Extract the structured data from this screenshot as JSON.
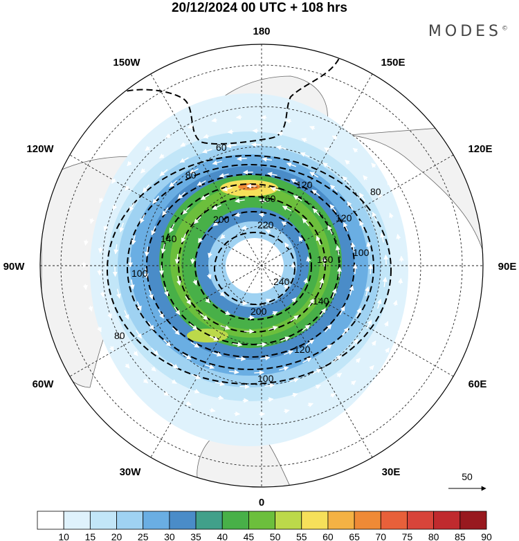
{
  "title": "20/12/2024  00 UTC  + 108 hrs",
  "logo": {
    "text": "MODES",
    "mark": "©"
  },
  "longitude_labels": [
    {
      "text": "180",
      "lon": 180
    },
    {
      "text": "150E",
      "lon": 150
    },
    {
      "text": "120E",
      "lon": 120
    },
    {
      "text": "90E",
      "lon": 90
    },
    {
      "text": "60E",
      "lon": 60
    },
    {
      "text": "30E",
      "lon": 30
    },
    {
      "text": "0",
      "lon": 0
    },
    {
      "text": "30W",
      "lon": -30
    },
    {
      "text": "60W",
      "lon": -60
    },
    {
      "text": "90W",
      "lon": -90
    },
    {
      "text": "120W",
      "lon": -120
    },
    {
      "text": "150W",
      "lon": -150
    }
  ],
  "contour_labels": [
    "60",
    "80",
    "120",
    "160",
    "200",
    "220",
    "240",
    "200",
    "140",
    "160",
    "120",
    "100",
    "80",
    "100",
    "80",
    "100",
    "140",
    "120"
  ],
  "vector_reference": {
    "label": "50"
  },
  "colorbar": {
    "labels": [
      "10",
      "15",
      "20",
      "25",
      "30",
      "35",
      "40",
      "45",
      "50",
      "55",
      "60",
      "65",
      "70",
      "75",
      "80",
      "85",
      "90"
    ],
    "colors": [
      "#ffffff",
      "#dff2fc",
      "#c2e6f8",
      "#9fd2f2",
      "#6aaee3",
      "#4a8cc8",
      "#41a08a",
      "#48b048",
      "#6cbf3c",
      "#bcd94a",
      "#f6e05a",
      "#f4b244",
      "#ef8a36",
      "#e8603a",
      "#d8443a",
      "#c02a2e",
      "#98191f"
    ]
  }
}
